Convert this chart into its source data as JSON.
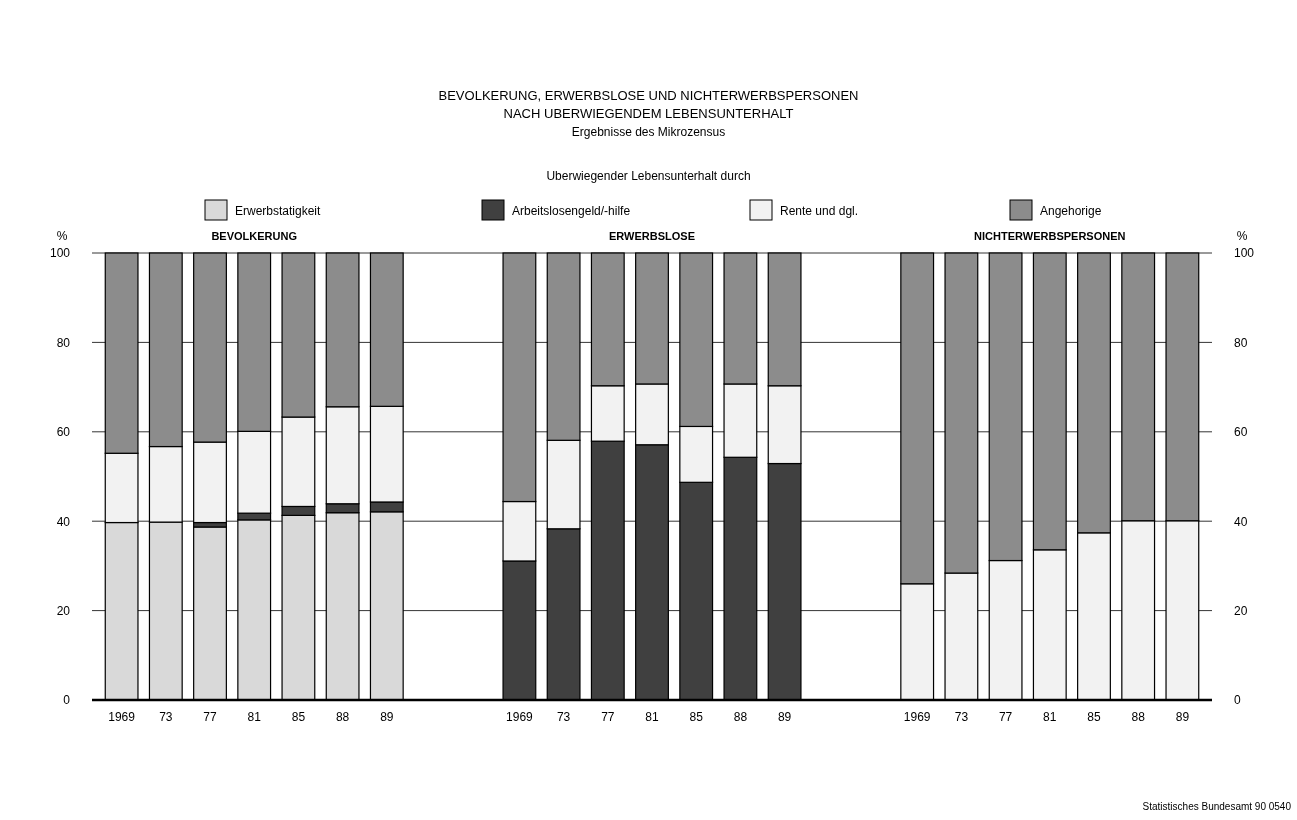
{
  "chart_data": {
    "type": "bar",
    "stacked": true,
    "title": "BEVOLKERUNG, ERWERBSLOSE UND NICHTERWERBSPERSONEN\nNACH UBERWIEGENDEM LEBENSUNTERHALT",
    "subtitle": "Ergebnisse des Mikrozensus",
    "legend_title": "Uberwiegender Lebensunterhalt durch",
    "ylabel": "%",
    "y2label": "%",
    "categories": [
      "1969",
      "73",
      "77",
      "81",
      "85",
      "88",
      "89",
      null,
      null,
      "1969",
      "73",
      "77",
      "81",
      "85",
      "88",
      "89",
      null,
      null,
      "1969",
      "73",
      "77",
      "81",
      "85",
      "88",
      "89"
    ],
    "series": [
      {
        "name": "Erwerbstatigkeit",
        "color": "#d9d9d9",
        "values": [
          39.7,
          39.8,
          38.7,
          40.3,
          41.3,
          41.9,
          42.1,
          null,
          null,
          0,
          0,
          0,
          0,
          0,
          0,
          0,
          null,
          null,
          0,
          0,
          0,
          0,
          0,
          0,
          0
        ]
      },
      {
        "name": "Arbeitslosengeld/-hilfe",
        "color": "#404040",
        "values": [
          0,
          0,
          1.0,
          1.5,
          2.0,
          2.0,
          2.2,
          null,
          null,
          31.1,
          38.3,
          57.9,
          57.1,
          48.7,
          54.3,
          52.9,
          null,
          null,
          0,
          0,
          0,
          0,
          0,
          0,
          0
        ]
      },
      {
        "name": "Rente und dgl.",
        "color": "#f2f2f2",
        "values": [
          15.5,
          16.9,
          18.0,
          18.3,
          20.0,
          21.7,
          21.4,
          null,
          null,
          13.3,
          19.8,
          12.4,
          13.6,
          12.5,
          16.4,
          17.4,
          null,
          null,
          26.0,
          28.4,
          31.2,
          33.6,
          37.4,
          40.1,
          40.1
        ]
      },
      {
        "name": "Angehorige",
        "color": "#8c8c8c",
        "values": [
          44.8,
          43.3,
          42.3,
          39.9,
          36.7,
          34.4,
          34.3,
          null,
          null,
          55.6,
          41.9,
          29.7,
          29.3,
          38.8,
          29.3,
          29.7,
          null,
          null,
          74.0,
          71.6,
          68.8,
          66.4,
          62.6,
          59.9,
          59.9
        ]
      }
    ],
    "ylim": [
      0,
      100
    ],
    "yticks": [
      0,
      20,
      40,
      60,
      80,
      100
    ],
    "y2lim": [
      0,
      100
    ],
    "y2ticks": [
      0,
      20,
      40,
      60,
      80,
      100
    ],
    "grid": "y",
    "legend": "top",
    "annotations": [
      "BEVOLKERUNG",
      "ERWERBSLOSE",
      "NICHTERWERBSPERSONEN",
      "Statistisches Bundesamt 90 0540"
    ]
  }
}
